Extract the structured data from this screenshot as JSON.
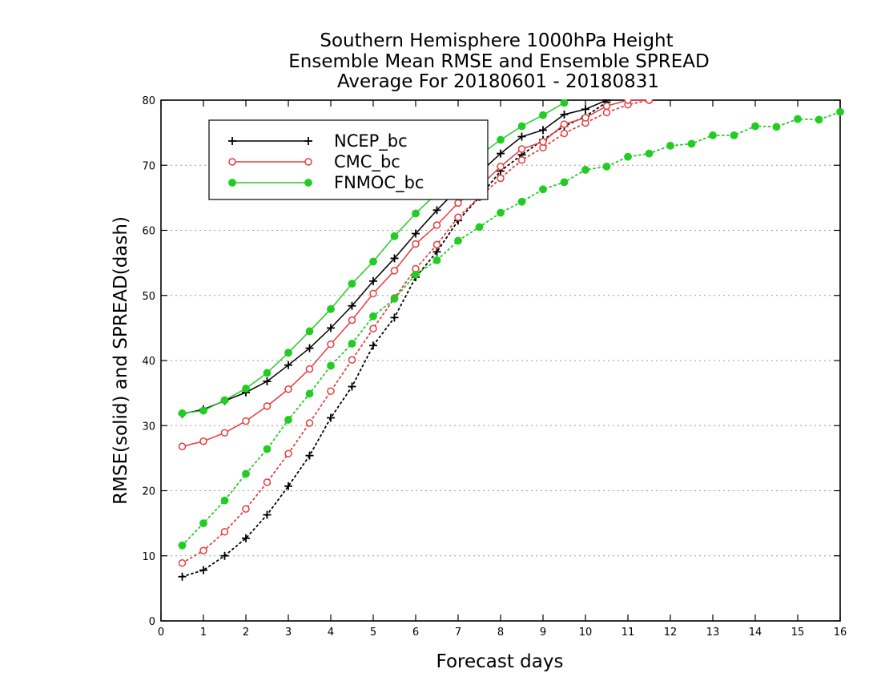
{
  "chart_data": {
    "type": "line",
    "title_lines": [
      "Southern Hemisphere 1000hPa Height",
      "Ensemble Mean RMSE and Ensemble SPREAD",
      "Average For 20180601 - 20180831"
    ],
    "xlabel": "Forecast days",
    "ylabel": "RMSE(solid) and SPREAD(dash)",
    "xlim": [
      0,
      16
    ],
    "ylim": [
      0,
      80
    ],
    "xticks": [
      0,
      1,
      2,
      3,
      4,
      5,
      6,
      7,
      8,
      9,
      10,
      11,
      12,
      13,
      14,
      15,
      16
    ],
    "yticks": [
      0,
      10,
      20,
      30,
      40,
      50,
      60,
      70,
      80
    ],
    "grid": "horizontal dotted",
    "legend_position": "top-left",
    "series": [
      {
        "name": "NCEP_bc",
        "color": "#000000",
        "marker": "plus",
        "rmse": {
          "x": [
            0.5,
            1,
            1.5,
            2,
            2.5,
            3,
            3.5,
            4,
            4.5,
            5,
            5.5,
            6,
            6.5,
            7,
            7.5,
            8,
            8.5,
            9,
            9.5,
            10,
            10.5
          ],
          "y": [
            31.8,
            32.5,
            33.8,
            35.1,
            36.8,
            39.3,
            41.9,
            45.0,
            48.4,
            52.2,
            55.7,
            59.5,
            63.1,
            66.4,
            68.8,
            71.8,
            74.4,
            75.4,
            77.8,
            78.6,
            80.0
          ]
        },
        "spread": {
          "x": [
            0.5,
            1,
            1.5,
            2,
            2.5,
            3,
            3.5,
            4,
            4.5,
            5,
            5.5,
            6,
            6.5,
            7,
            7.5,
            8,
            8.5,
            9,
            9.5,
            10,
            10.5
          ],
          "y": [
            6.8,
            7.8,
            10.0,
            12.7,
            16.3,
            20.7,
            25.4,
            31.2,
            36.0,
            42.3,
            46.6,
            52.8,
            56.7,
            61.5,
            65.1,
            69.1,
            71.6,
            73.9,
            76.0,
            77.5,
            79.7
          ]
        }
      },
      {
        "name": "CMC_bc",
        "color": "#e63c3c",
        "marker": "open-circle",
        "rmse": {
          "x": [
            0.5,
            1,
            1.5,
            2,
            2.5,
            3,
            3.5,
            4,
            4.5,
            5,
            5.5,
            6,
            6.5,
            7,
            7.5,
            8,
            8.5,
            9,
            9.5,
            10,
            10.5,
            11,
            11.5
          ],
          "y": [
            26.8,
            27.6,
            28.9,
            30.7,
            33.0,
            35.6,
            38.7,
            42.5,
            46.2,
            50.3,
            53.8,
            57.9,
            60.8,
            64.2,
            66.7,
            69.8,
            72.5,
            73.6,
            76.3,
            77.3,
            79.1,
            80.0,
            80.0
          ]
        },
        "spread": {
          "x": [
            0.5,
            1,
            1.5,
            2,
            2.5,
            3,
            3.5,
            4,
            4.5,
            5,
            5.5,
            6,
            6.5,
            7,
            7.5,
            8,
            8.5,
            9,
            9.5,
            10,
            10.5,
            11,
            11.5
          ],
          "y": [
            8.9,
            10.8,
            13.7,
            17.2,
            21.3,
            25.7,
            30.4,
            35.3,
            40.1,
            44.9,
            49.6,
            54.1,
            57.8,
            62.0,
            65.1,
            68.0,
            70.8,
            72.7,
            74.9,
            76.5,
            78.1,
            79.3,
            80.0
          ]
        }
      },
      {
        "name": "FNMOC_bc",
        "color": "#22cc22",
        "marker": "filled-circle",
        "rmse": {
          "x": [
            0.5,
            1,
            1.5,
            2,
            2.5,
            3,
            3.5,
            4,
            4.5,
            5,
            5.5,
            6,
            6.5,
            7,
            7.5,
            8,
            8.5,
            9,
            9.5
          ],
          "y": [
            31.9,
            32.3,
            33.9,
            35.7,
            38.1,
            41.2,
            44.5,
            47.9,
            51.8,
            55.2,
            59.1,
            62.6,
            65.7,
            69.1,
            71.5,
            73.9,
            76.0,
            77.7,
            79.6
          ]
        },
        "spread": {
          "x": [
            0.5,
            1,
            1.5,
            2,
            2.5,
            3,
            3.5,
            4,
            4.5,
            5,
            5.5,
            6,
            6.5,
            7,
            7.5,
            8,
            8.5,
            9,
            9.5,
            10,
            10.5,
            11,
            11.5,
            12,
            12.5,
            13,
            13.5,
            14,
            14.5,
            15,
            15.5,
            16
          ],
          "y": [
            11.6,
            15.0,
            18.5,
            22.6,
            26.4,
            30.9,
            34.9,
            39.2,
            42.6,
            46.8,
            49.5,
            53.2,
            55.4,
            58.4,
            60.5,
            62.7,
            64.4,
            66.3,
            67.4,
            69.3,
            69.8,
            71.3,
            71.8,
            73.0,
            73.3,
            74.6,
            74.6,
            76.0,
            75.9,
            77.1,
            77.0,
            78.2
          ]
        }
      }
    ]
  }
}
